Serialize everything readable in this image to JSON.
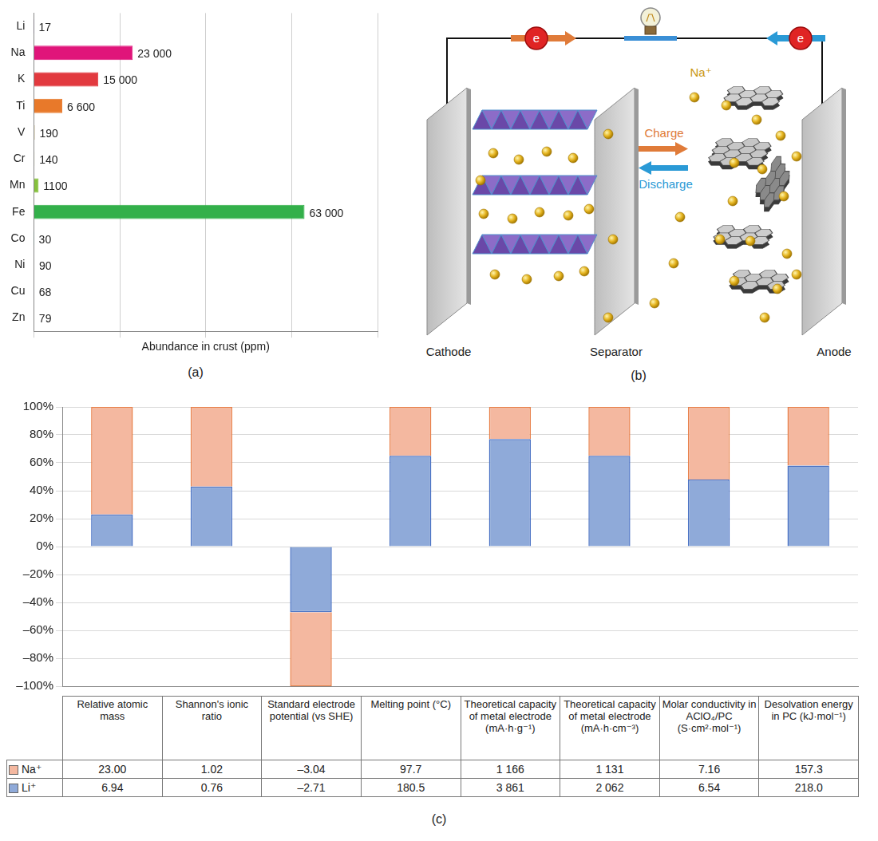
{
  "chart_data": [
    {
      "type": "bar",
      "panel_label": "(a)",
      "orientation": "horizontal",
      "categories": [
        "Li",
        "Na",
        "K",
        "Ti",
        "V",
        "Cr",
        "Mn",
        "Fe",
        "Co",
        "Ni",
        "Cu",
        "Zn"
      ],
      "values": [
        17,
        23000,
        15000,
        6600,
        190,
        140,
        1100,
        63000,
        30,
        90,
        68,
        79
      ],
      "value_labels": [
        "17",
        "23 000",
        "15 000",
        "6 600",
        "190",
        "140",
        "1100",
        "63 000",
        "30",
        "90",
        "68",
        "79"
      ],
      "colors": [
        "#5b2c86",
        "#e0157a",
        "#e23a3f",
        "#e8792a",
        "#9c8420",
        "#a3a52e",
        "#86c13c",
        "#33b04a",
        "#178f74",
        "#1a8a8c",
        "#1d6fa6",
        "#2b4c9c"
      ],
      "x_label": "Abundance in crust (ppm)",
      "xlim": [
        0,
        80000
      ],
      "xticks": [
        0,
        20000,
        40000,
        60000,
        80000
      ],
      "grid": true,
      "data_labels": true,
      "tick_labels": "y"
    },
    {
      "type": "bar",
      "panel_label": "(c)",
      "stacked": true,
      "categories": [
        "Relative atomic mass",
        "Shannon's ionic ratio",
        "Standard electrode potential (vs SHE)",
        "Melting point (°C)",
        "Theoretical capacity of metal electrode (mA·h·g⁻¹)",
        "Theoretical capacity of metal electrode (mA·h·cm⁻³)",
        "Molar conductivity in AClO₄/PC (S·cm²·mol⁻¹)",
        "Desolvation energy in PC (kJ·mol⁻¹)"
      ],
      "series": [
        {
          "name": "Na⁺",
          "color": "#f4b8a0",
          "values": [
            77,
            57,
            -53,
            35,
            23,
            35,
            52,
            42
          ],
          "table_cells": [
            "23.00",
            "1.02",
            "–3.04",
            "97.7",
            "1 166",
            "1 131",
            "7.16",
            "157.3"
          ]
        },
        {
          "name": "Li⁺",
          "color": "#8faad9",
          "values": [
            23,
            43,
            -47,
            65,
            77,
            65,
            48,
            58
          ],
          "table_cells": [
            "6.94",
            "0.76",
            "–2.71",
            "180.5",
            "3 861",
            "2 062",
            "6.54",
            "218.0"
          ]
        }
      ],
      "ylim": [
        -100,
        100
      ],
      "yticks": [
        {
          "value": -100,
          "label": "–100%"
        },
        {
          "value": -80,
          "label": "–80%"
        },
        {
          "value": -60,
          "label": "–60%"
        },
        {
          "value": -40,
          "label": "–40%"
        },
        {
          "value": -20,
          "label": "–20%"
        },
        {
          "value": 0,
          "label": "0%"
        },
        {
          "value": 20,
          "label": "20%"
        },
        {
          "value": 40,
          "label": "40%"
        },
        {
          "value": 60,
          "label": "60%"
        },
        {
          "value": 80,
          "label": "80%"
        },
        {
          "value": 100,
          "label": "100%"
        }
      ],
      "grid": true,
      "tick_labels": "y"
    }
  ],
  "diagram": {
    "panel_label": "(b)",
    "labels": {
      "cathode": "Cathode",
      "separator": "Separator",
      "anode": "Anode",
      "charge": "Charge",
      "discharge": "Discharge",
      "ion": "Na⁺",
      "electron": "e"
    }
  }
}
